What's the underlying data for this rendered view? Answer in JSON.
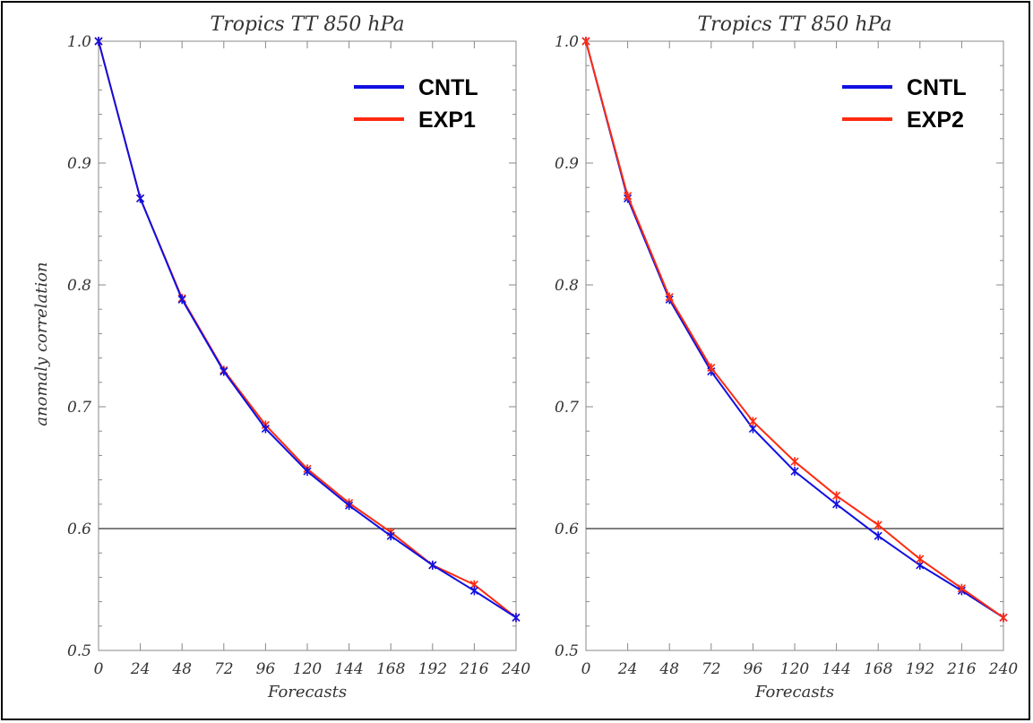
{
  "colors": {
    "cntl": "#1010e0",
    "exp": "#ff2a10",
    "reference_line": "#555555",
    "axis": "#888888"
  },
  "ylabel": "anomaly correlation",
  "chart_data": [
    {
      "type": "line",
      "title": "Tropics   TT 850 hPa",
      "xlabel": "Forecasts",
      "ylabel": "anomaly correlation",
      "x": [
        0,
        24,
        48,
        72,
        96,
        120,
        144,
        168,
        192,
        216,
        240
      ],
      "xlim": [
        0,
        240
      ],
      "ylim": [
        0.5,
        1.0
      ],
      "yticks": [
        "0.5",
        "0.6",
        "0.7",
        "0.8",
        "0.9",
        "1.0"
      ],
      "xticks": [
        "0",
        "24",
        "48",
        "72",
        "96",
        "120",
        "144",
        "168",
        "192",
        "216",
        "240"
      ],
      "reference_line_y": 0.6,
      "legend_position": "top-right",
      "series": [
        {
          "name": "CNTL",
          "color": "#1010e0",
          "values": [
            1.0,
            0.871,
            0.788,
            0.729,
            0.682,
            0.647,
            0.619,
            0.594,
            0.57,
            0.549,
            0.527
          ]
        },
        {
          "name": "EXP1",
          "color": "#ff2a10",
          "values": [
            1.0,
            0.871,
            0.789,
            0.73,
            0.685,
            0.649,
            0.621,
            0.597,
            0.57,
            0.554,
            0.527
          ]
        }
      ]
    },
    {
      "type": "line",
      "title": "Tropics   TT 850 hPa",
      "xlabel": "Forecasts",
      "ylabel": "",
      "x": [
        0,
        24,
        48,
        72,
        96,
        120,
        144,
        168,
        192,
        216,
        240
      ],
      "xlim": [
        0,
        240
      ],
      "ylim": [
        0.5,
        1.0
      ],
      "yticks": [
        "0.5",
        "0.6",
        "0.7",
        "0.8",
        "0.9",
        "1.0"
      ],
      "xticks": [
        "0",
        "24",
        "48",
        "72",
        "96",
        "120",
        "144",
        "168",
        "192",
        "216",
        "240"
      ],
      "reference_line_y": 0.6,
      "legend_position": "top-right",
      "series": [
        {
          "name": "CNTL",
          "color": "#1010e0",
          "values": [
            1.0,
            0.871,
            0.788,
            0.729,
            0.682,
            0.647,
            0.62,
            0.594,
            0.57,
            0.549,
            0.527
          ]
        },
        {
          "name": "EXP2",
          "color": "#ff2a10",
          "values": [
            1.0,
            0.873,
            0.79,
            0.732,
            0.688,
            0.655,
            0.627,
            0.603,
            0.575,
            0.551,
            0.527
          ]
        }
      ]
    }
  ]
}
